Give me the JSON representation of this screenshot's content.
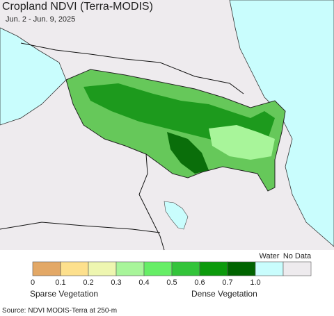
{
  "header": {
    "title": "Cropland NDVI (Terra-MODIS)",
    "subtitle": "Jun. 2 - Jun. 9, 2025"
  },
  "legend": {
    "classes": [
      "#e3a866",
      "#fde08d",
      "#eef6b0",
      "#a8f59a",
      "#66ee66",
      "#33c43a",
      "#0c9a0c",
      "#006400"
    ],
    "ticks": [
      "0",
      "0.1",
      "0.2",
      "0.3",
      "0.4",
      "0.5",
      "0.6",
      "0.7",
      "1.0"
    ],
    "water": {
      "label": "Water",
      "color": "#c9fdfd"
    },
    "no_data": {
      "label": "No Data",
      "color": "#eeebee"
    },
    "low_label": "Sparse Vegetation",
    "high_label": "Dense Vegetation"
  },
  "footer": {
    "source": "Source: NDVI MODIS-Terra at 250-m"
  }
}
